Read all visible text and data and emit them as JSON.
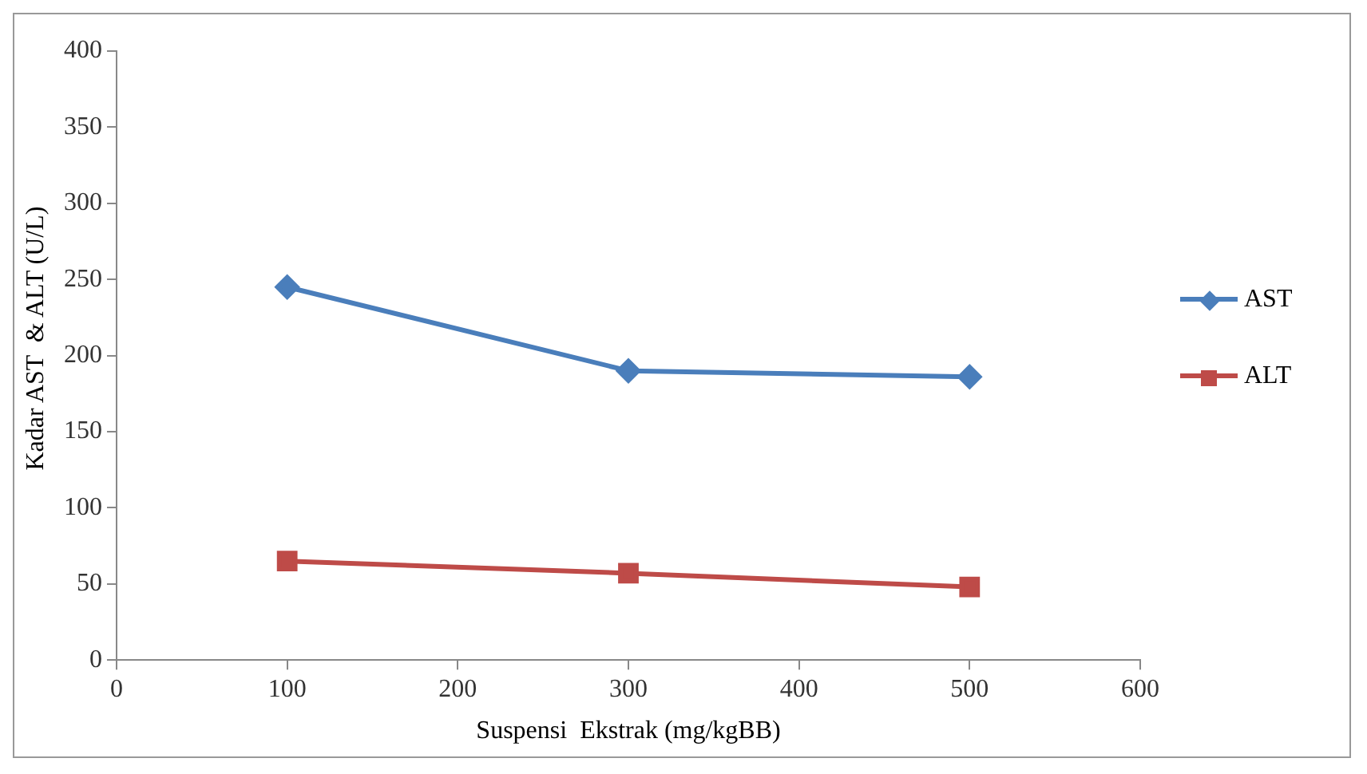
{
  "chart_data": {
    "type": "line",
    "xlabel": "Suspensi  Ekstrak (mg/kgBB)",
    "ylabel": "Kadar AST  & ALT (U/L)",
    "x": [
      100,
      300,
      500
    ],
    "series": [
      {
        "name": "AST",
        "color": "#4a7ebb",
        "values": [
          245,
          190,
          186
        ],
        "marker": "diamond"
      },
      {
        "name": "ALT",
        "color": "#be4b48",
        "values": [
          65,
          57,
          48
        ],
        "marker": "square"
      }
    ],
    "xlim": [
      0,
      600
    ],
    "xticks": [
      0,
      100,
      200,
      300,
      400,
      500,
      600
    ],
    "ylim": [
      0,
      400
    ],
    "yticks": [
      0,
      50,
      100,
      150,
      200,
      250,
      300,
      350,
      400
    ],
    "grid": false,
    "legend": "right",
    "line_style": "solid"
  }
}
